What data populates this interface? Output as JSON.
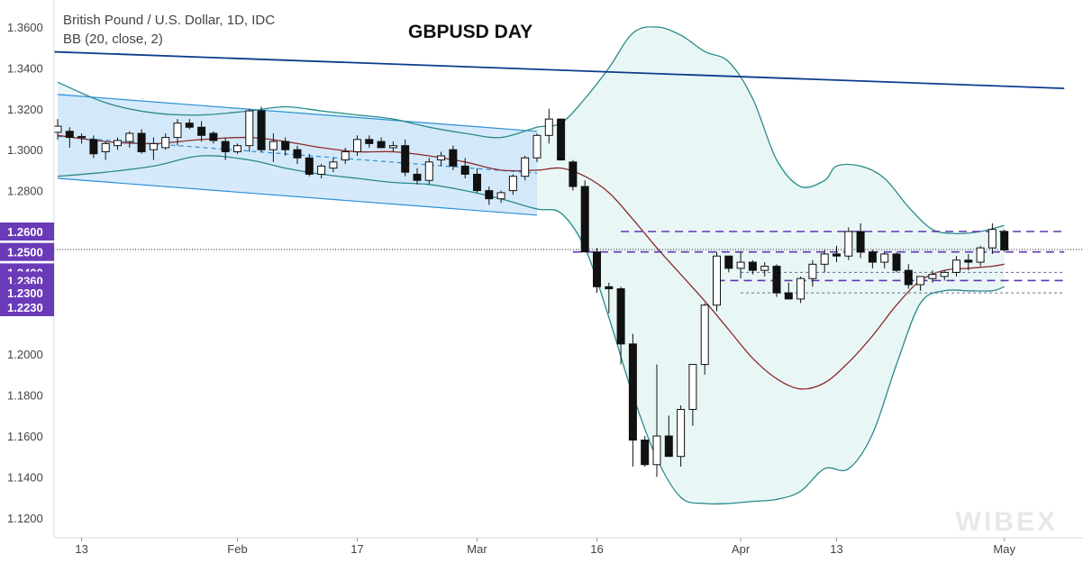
{
  "legend": {
    "symbol_line": "British Pound / U.S. Dollar, 1D, IDC",
    "indicator_line": "BB (20, close, 2)"
  },
  "watermark": "WIBEX",
  "chart_data": {
    "type": "candlestick",
    "title": "GBPUSD DAY",
    "xlabel": "",
    "ylabel": "",
    "ylim": [
      1.11,
      1.37
    ],
    "y_ticks": [
      "1.3600",
      "1.3400",
      "1.3200",
      "1.3000",
      "1.2800",
      "1.2000",
      "1.1800",
      "1.1600",
      "1.1400",
      "1.1200"
    ],
    "price_tags": [
      "1.2600",
      "1.2500",
      "1.2400",
      "1.2360",
      "1.2300",
      "1.2230"
    ],
    "current_price": 1.2512,
    "x_labels": [
      {
        "label": "13",
        "index": 2
      },
      {
        "label": "Feb",
        "index": 15
      },
      {
        "label": "17",
        "index": 25
      },
      {
        "label": "Mar",
        "index": 35
      },
      {
        "label": "16",
        "index": 45
      },
      {
        "label": "Apr",
        "index": 57
      },
      {
        "label": "13",
        "index": 65
      },
      {
        "label": "May",
        "index": 79
      }
    ],
    "candles": [
      [
        1.3085,
        1.315,
        1.305,
        1.3115
      ],
      [
        1.309,
        1.311,
        1.301,
        1.306
      ],
      [
        1.306,
        1.308,
        1.303,
        1.3065
      ],
      [
        1.305,
        1.307,
        1.296,
        1.298
      ],
      [
        1.299,
        1.304,
        1.295,
        1.303
      ],
      [
        1.302,
        1.306,
        1.3,
        1.3045
      ],
      [
        1.304,
        1.309,
        1.301,
        1.308
      ],
      [
        1.308,
        1.31,
        1.298,
        1.299
      ],
      [
        1.3,
        1.306,
        1.295,
        1.303
      ],
      [
        1.301,
        1.308,
        1.3,
        1.306
      ],
      [
        1.306,
        1.315,
        1.302,
        1.313
      ],
      [
        1.313,
        1.315,
        1.31,
        1.311
      ],
      [
        1.311,
        1.314,
        1.304,
        1.307
      ],
      [
        1.308,
        1.309,
        1.303,
        1.3045
      ],
      [
        1.304,
        1.306,
        1.295,
        1.299
      ],
      [
        1.299,
        1.303,
        1.298,
        1.302
      ],
      [
        1.302,
        1.32,
        1.299,
        1.319
      ],
      [
        1.319,
        1.321,
        1.299,
        1.3
      ],
      [
        1.3,
        1.308,
        1.294,
        1.304
      ],
      [
        1.304,
        1.306,
        1.297,
        1.3
      ],
      [
        1.3,
        1.302,
        1.293,
        1.296
      ],
      [
        1.296,
        1.298,
        1.287,
        1.288
      ],
      [
        1.288,
        1.293,
        1.286,
        1.292
      ],
      [
        1.291,
        1.296,
        1.289,
        1.294
      ],
      [
        1.295,
        1.301,
        1.293,
        1.299
      ],
      [
        1.299,
        1.307,
        1.297,
        1.305
      ],
      [
        1.305,
        1.307,
        1.301,
        1.303
      ],
      [
        1.304,
        1.306,
        1.301,
        1.301
      ],
      [
        1.301,
        1.304,
        1.299,
        1.302
      ],
      [
        1.302,
        1.305,
        1.287,
        1.289
      ],
      [
        1.288,
        1.291,
        1.283,
        1.285
      ],
      [
        1.285,
        1.296,
        1.283,
        1.294
      ],
      [
        1.295,
        1.299,
        1.292,
        1.297
      ],
      [
        1.3,
        1.302,
        1.29,
        1.292
      ],
      [
        1.292,
        1.296,
        1.286,
        1.288
      ],
      [
        1.288,
        1.291,
        1.279,
        1.28
      ],
      [
        1.28,
        1.282,
        1.273,
        1.276
      ],
      [
        1.276,
        1.28,
        1.274,
        1.279
      ],
      [
        1.28,
        1.288,
        1.278,
        1.287
      ],
      [
        1.287,
        1.297,
        1.285,
        1.296
      ],
      [
        1.296,
        1.308,
        1.294,
        1.307
      ],
      [
        1.307,
        1.32,
        1.303,
        1.315
      ],
      [
        1.315,
        1.315,
        1.295,
        1.295
      ],
      [
        1.294,
        1.295,
        1.28,
        1.282
      ],
      [
        1.282,
        1.285,
        1.25,
        1.25
      ],
      [
        1.25,
        1.252,
        1.23,
        1.233
      ],
      [
        1.233,
        1.235,
        1.22,
        1.232
      ],
      [
        1.232,
        1.233,
        1.195,
        1.205
      ],
      [
        1.205,
        1.21,
        1.145,
        1.158
      ],
      [
        1.158,
        1.16,
        1.145,
        1.146
      ],
      [
        1.146,
        1.195,
        1.14,
        1.16
      ],
      [
        1.16,
        1.17,
        1.15,
        1.15
      ],
      [
        1.15,
        1.175,
        1.145,
        1.173
      ],
      [
        1.173,
        1.195,
        1.165,
        1.195
      ],
      [
        1.195,
        1.225,
        1.19,
        1.224
      ],
      [
        1.224,
        1.25,
        1.221,
        1.248
      ],
      [
        1.248,
        1.248,
        1.24,
        1.242
      ],
      [
        1.242,
        1.25,
        1.237,
        1.245
      ],
      [
        1.245,
        1.246,
        1.239,
        1.241
      ],
      [
        1.241,
        1.245,
        1.238,
        1.243
      ],
      [
        1.243,
        1.244,
        1.228,
        1.23
      ],
      [
        1.23,
        1.235,
        1.227,
        1.227
      ],
      [
        1.227,
        1.238,
        1.225,
        1.237
      ],
      [
        1.237,
        1.246,
        1.233,
        1.244
      ],
      [
        1.244,
        1.251,
        1.24,
        1.249
      ],
      [
        1.249,
        1.253,
        1.245,
        1.248
      ],
      [
        1.248,
        1.262,
        1.246,
        1.26
      ],
      [
        1.26,
        1.264,
        1.247,
        1.25
      ],
      [
        1.25,
        1.251,
        1.242,
        1.245
      ],
      [
        1.245,
        1.25,
        1.242,
        1.249
      ],
      [
        1.249,
        1.25,
        1.24,
        1.241
      ],
      [
        1.241,
        1.244,
        1.232,
        1.234
      ],
      [
        1.234,
        1.238,
        1.231,
        1.238
      ],
      [
        1.237,
        1.241,
        1.235,
        1.239
      ],
      [
        1.238,
        1.241,
        1.236,
        1.24
      ],
      [
        1.24,
        1.248,
        1.238,
        1.246
      ],
      [
        1.246,
        1.249,
        1.241,
        1.245
      ],
      [
        1.245,
        1.253,
        1.243,
        1.252
      ],
      [
        1.252,
        1.264,
        1.249,
        1.261
      ],
      [
        1.26,
        1.261,
        1.25,
        1.251
      ]
    ],
    "bollinger_upper": [
      [
        0,
        1.333
      ],
      [
        4,
        1.323
      ],
      [
        8,
        1.318
      ],
      [
        12,
        1.317
      ],
      [
        16,
        1.319
      ],
      [
        19,
        1.321
      ],
      [
        22,
        1.319
      ],
      [
        25,
        1.317
      ],
      [
        28,
        1.315
      ],
      [
        31,
        1.311
      ],
      [
        34,
        1.308
      ],
      [
        37,
        1.306
      ],
      [
        40,
        1.311
      ],
      [
        42,
        1.313
      ],
      [
        44,
        1.325
      ],
      [
        46,
        1.34
      ],
      [
        48,
        1.357
      ],
      [
        50,
        1.36
      ],
      [
        52,
        1.356
      ],
      [
        54,
        1.348
      ],
      [
        56,
        1.343
      ],
      [
        58,
        1.325
      ],
      [
        60,
        1.295
      ],
      [
        62,
        1.282
      ],
      [
        64,
        1.285
      ],
      [
        65,
        1.292
      ],
      [
        67,
        1.292
      ],
      [
        69,
        1.286
      ],
      [
        71,
        1.272
      ],
      [
        73,
        1.261
      ],
      [
        75,
        1.259
      ],
      [
        77,
        1.26
      ],
      [
        79,
        1.263
      ]
    ],
    "bollinger_middle": [
      [
        0,
        1.307
      ],
      [
        4,
        1.304
      ],
      [
        8,
        1.303
      ],
      [
        12,
        1.305
      ],
      [
        16,
        1.306
      ],
      [
        19,
        1.304
      ],
      [
        22,
        1.301
      ],
      [
        25,
        1.299
      ],
      [
        28,
        1.299
      ],
      [
        31,
        1.297
      ],
      [
        34,
        1.294
      ],
      [
        37,
        1.29
      ],
      [
        40,
        1.29
      ],
      [
        42,
        1.291
      ],
      [
        44,
        1.287
      ],
      [
        46,
        1.279
      ],
      [
        48,
        1.266
      ],
      [
        50,
        1.252
      ],
      [
        52,
        1.239
      ],
      [
        54,
        1.226
      ],
      [
        56,
        1.212
      ],
      [
        58,
        1.198
      ],
      [
        60,
        1.188
      ],
      [
        62,
        1.183
      ],
      [
        64,
        1.186
      ],
      [
        66,
        1.196
      ],
      [
        68,
        1.209
      ],
      [
        70,
        1.224
      ],
      [
        72,
        1.236
      ],
      [
        74,
        1.241
      ],
      [
        76,
        1.242
      ],
      [
        78,
        1.243
      ],
      [
        79,
        1.244
      ]
    ],
    "bollinger_lower": [
      [
        0,
        1.287
      ],
      [
        4,
        1.289
      ],
      [
        8,
        1.292
      ],
      [
        12,
        1.297
      ],
      [
        16,
        1.295
      ],
      [
        19,
        1.291
      ],
      [
        22,
        1.288
      ],
      [
        25,
        1.286
      ],
      [
        28,
        1.284
      ],
      [
        31,
        1.283
      ],
      [
        34,
        1.28
      ],
      [
        37,
        1.276
      ],
      [
        40,
        1.271
      ],
      [
        42,
        1.269
      ],
      [
        44,
        1.252
      ],
      [
        46,
        1.218
      ],
      [
        48,
        1.18
      ],
      [
        50,
        1.149
      ],
      [
        52,
        1.13
      ],
      [
        54,
        1.127
      ],
      [
        56,
        1.127
      ],
      [
        58,
        1.128
      ],
      [
        60,
        1.129
      ],
      [
        62,
        1.133
      ],
      [
        64,
        1.144
      ],
      [
        66,
        1.144
      ],
      [
        68,
        1.161
      ],
      [
        70,
        1.195
      ],
      [
        72,
        1.225
      ],
      [
        74,
        1.231
      ],
      [
        76,
        1.231
      ],
      [
        78,
        1.231
      ],
      [
        79,
        1.233
      ]
    ],
    "channel": {
      "upper": [
        [
          0,
          1.327
        ],
        [
          40,
          1.309
        ]
      ],
      "lower": [
        [
          0,
          1.286
        ],
        [
          40,
          1.268
        ]
      ],
      "mid": [
        [
          0,
          1.3065
        ],
        [
          40,
          1.2885
        ]
      ]
    },
    "trendline": [
      [
        -1,
        1.348
      ],
      [
        84,
        1.33
      ]
    ],
    "levels": [
      {
        "value": 1.26,
        "from": 47,
        "to": 84,
        "style": "dashed-purple"
      },
      {
        "value": 1.25,
        "from": 43,
        "to": 84,
        "style": "dashed-purple"
      },
      {
        "value": 1.24,
        "from": 57,
        "to": 84,
        "style": "dotted"
      },
      {
        "value": 1.236,
        "from": 55,
        "to": 84,
        "style": "dashed-purple"
      },
      {
        "value": 1.23,
        "from": 57,
        "to": 84,
        "style": "dotted"
      }
    ],
    "colors": {
      "up_body": "#ffffff",
      "down_body": "#111111",
      "bb_line": "#2a8a8a",
      "bb_fill": "#e9f6f6",
      "middle_band": "#8b2a2a",
      "channel_fill": "#cfe6fa",
      "channel_line": "#2b8fd6",
      "trendline": "#0d3c8c",
      "level_purple": "#5e35b1",
      "price_tag": "#6a3ab8"
    }
  }
}
